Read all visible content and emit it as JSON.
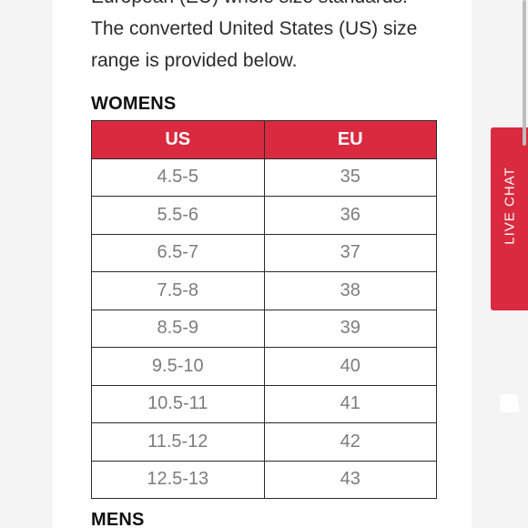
{
  "content": {
    "cut_line": "European (EU) whole size standards.",
    "intro": "The converted United States (US) size range is provided below."
  },
  "womens": {
    "title": "WOMENS",
    "headers": [
      "US",
      "EU"
    ],
    "rows": [
      [
        "4.5-5",
        "35"
      ],
      [
        "5.5-6",
        "36"
      ],
      [
        "6.5-7",
        "37"
      ],
      [
        "7.5-8",
        "38"
      ],
      [
        "8.5-9",
        "39"
      ],
      [
        "9.5-10",
        "40"
      ],
      [
        "10.5-11",
        "41"
      ],
      [
        "11.5-12",
        "42"
      ],
      [
        "12.5-13",
        "43"
      ]
    ]
  },
  "mens": {
    "title": "MENS"
  },
  "live_chat": {
    "label": "LIVE CHAT",
    "icon": "chat-bubble-icon",
    "color": "#d92a3f"
  },
  "colors": {
    "header_bg": "#d92a3f",
    "header_text": "#ffffff",
    "cell_text": "#7c7c7c",
    "border": "#2a2a2a"
  }
}
